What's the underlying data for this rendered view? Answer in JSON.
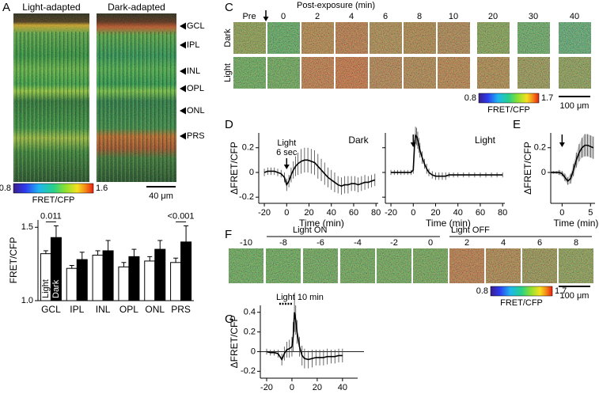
{
  "figure": {
    "a": {
      "label": "A",
      "titles": [
        "Light-adapted",
        "Dark-adapted"
      ],
      "layers": [
        "GCL",
        "IPL",
        "INL",
        "OPL",
        "ONL",
        "PRS"
      ],
      "colorbar": {
        "min": 0.8,
        "max": 1.6,
        "label": "FRET/CFP"
      },
      "scale_bar": "40 μm"
    },
    "c": {
      "label": "C",
      "header": "Post-exposure (min)",
      "columns": [
        "Pre",
        0,
        2,
        4,
        6,
        8,
        10,
        20,
        30,
        40
      ],
      "rows": [
        "Dark",
        "Light"
      ],
      "colorbar": {
        "min": 0.8,
        "max": 1.7,
        "label": "FRET/CFP"
      },
      "scale_bar": "100 μm"
    },
    "d": {
      "label": "D"
    },
    "e": {
      "label": "E"
    },
    "f": {
      "label": "F",
      "light_on": "Light ON",
      "light_off": "Light OFF",
      "columns": [
        -10,
        -8,
        -6,
        -4,
        -2,
        0,
        2,
        4,
        6,
        8
      ],
      "colorbar": {
        "min": 0.8,
        "max": 1.7,
        "label": "FRET/CFP"
      },
      "scale_bar": "100 μm"
    },
    "g": {
      "label": "G"
    }
  },
  "chart_data": [
    {
      "type": "bar",
      "ylabel": "FRET/CFP",
      "categories": [
        "GCL",
        "IPL",
        "INL",
        "OPL",
        "ONL",
        "PRS"
      ],
      "series": [
        {
          "name": "Light",
          "color": "#ffffff",
          "values": [
            1.32,
            1.22,
            1.31,
            1.23,
            1.27,
            1.26
          ],
          "errors": [
            0.02,
            0.02,
            0.03,
            0.03,
            0.03,
            0.03
          ]
        },
        {
          "name": "Dark",
          "color": "#000000",
          "values": [
            1.43,
            1.28,
            1.34,
            1.3,
            1.35,
            1.4
          ],
          "errors": [
            0.08,
            0.05,
            0.07,
            0.05,
            0.06,
            0.11
          ]
        }
      ],
      "ylim": [
        1.0,
        1.55
      ],
      "yticks": [
        {
          "value": 1,
          "label": "1.0"
        },
        1.5
      ],
      "annotations": [
        {
          "text": "0.011",
          "category": 0
        },
        {
          "text": "<0.001",
          "category": 5
        }
      ]
    },
    {
      "type": "line",
      "title": "Dark",
      "annotation": [
        "Light",
        "6 sec"
      ],
      "event_x": 0,
      "xlabel": "Time (min)",
      "ylabel": "ΔFRET/CFP",
      "x": [
        -20,
        -17,
        -14,
        -11,
        -8,
        -5,
        -2,
        0,
        2,
        4,
        6,
        8,
        10,
        13,
        16,
        19,
        22,
        25,
        28,
        31,
        34,
        37,
        40,
        43,
        46,
        49,
        52,
        55,
        58,
        61,
        64,
        67,
        70,
        73,
        76,
        79
      ],
      "series": [
        {
          "color": "#000000",
          "values": [
            0,
            0.01,
            0.01,
            0.01,
            0.0,
            -0.01,
            -0.04,
            -0.1,
            -0.07,
            -0.02,
            0.02,
            0.05,
            0.07,
            0.09,
            0.1,
            0.1,
            0.09,
            0.08,
            0.05,
            0.02,
            -0.01,
            -0.04,
            -0.06,
            -0.08,
            -0.1,
            -0.11,
            -0.1,
            -0.1,
            -0.09,
            -0.09,
            -0.1,
            -0.09,
            -0.08,
            -0.08,
            -0.07,
            -0.06
          ],
          "errors": [
            0.03,
            0.03,
            0.03,
            0.03,
            0.03,
            0.03,
            0.04,
            0.05,
            0.05,
            0.06,
            0.07,
            0.08,
            0.09,
            0.1,
            0.1,
            0.1,
            0.1,
            0.1,
            0.1,
            0.09,
            0.09,
            0.08,
            0.08,
            0.08,
            0.07,
            0.07,
            0.07,
            0.07,
            0.06,
            0.06,
            0.06,
            0.06,
            0.06,
            0.05,
            0.05,
            0.05
          ]
        }
      ],
      "xlim": [
        -25,
        82
      ],
      "xticks": [
        -20,
        0,
        20,
        40,
        60,
        80
      ],
      "ylim": [
        -0.25,
        0.32
      ],
      "yticks": [
        -0.2,
        0,
        0.2
      ],
      "ytick_labels": true
    },
    {
      "type": "line",
      "title": "Light",
      "event_x": 0,
      "xlabel": "Time (min)",
      "x": [
        -20,
        -17,
        -14,
        -11,
        -8,
        -5,
        -2,
        0,
        1,
        2,
        3,
        4,
        5,
        6,
        8,
        10,
        12,
        14,
        17,
        20,
        23,
        26,
        29,
        32,
        36,
        40,
        45,
        50,
        55,
        60,
        65,
        70,
        75,
        80
      ],
      "series": [
        {
          "color": "#000000",
          "values": [
            0,
            0,
            0,
            0,
            0,
            0,
            0,
            0.02,
            0.2,
            0.3,
            0.29,
            0.26,
            0.22,
            0.18,
            0.12,
            0.07,
            0.03,
            0.0,
            -0.02,
            -0.03,
            -0.03,
            -0.03,
            -0.03,
            -0.02,
            -0.02,
            -0.02,
            -0.02,
            -0.02,
            -0.02,
            -0.02,
            -0.02,
            -0.02,
            -0.02,
            -0.02
          ],
          "errors": [
            0.02,
            0.02,
            0.02,
            0.02,
            0.02,
            0.02,
            0.02,
            0.03,
            0.06,
            0.07,
            0.07,
            0.07,
            0.06,
            0.06,
            0.05,
            0.04,
            0.04,
            0.03,
            0.03,
            0.03,
            0.03,
            0.03,
            0.03,
            0.02,
            0.02,
            0.02,
            0.02,
            0.02,
            0.02,
            0.02,
            0.02,
            0.02,
            0.02,
            0.02
          ]
        }
      ],
      "xlim": [
        -25,
        82
      ],
      "xticks": [
        -20,
        0,
        20,
        40,
        60,
        80
      ],
      "ylim": [
        -0.25,
        0.32
      ],
      "yticks": [
        -0.2,
        0,
        0.2
      ],
      "ytick_labels": false
    },
    {
      "type": "line",
      "event_x": 0,
      "xlabel": "Time (min)",
      "ylabel": "ΔFRET/CFP",
      "band": true,
      "x": [
        -2,
        -1.5,
        -1,
        -0.5,
        0,
        0.5,
        1,
        1.5,
        2,
        2.5,
        3,
        3.5,
        4,
        4.5,
        5,
        5.5
      ],
      "series": [
        {
          "color": "#000000",
          "values": [
            0,
            0,
            0,
            0,
            -0.01,
            -0.04,
            -0.07,
            -0.05,
            0.02,
            0.1,
            0.16,
            0.2,
            0.22,
            0.22,
            0.21,
            0.2
          ],
          "errors": [
            0.01,
            0.01,
            0.01,
            0.02,
            0.02,
            0.03,
            0.03,
            0.04,
            0.05,
            0.06,
            0.07,
            0.08,
            0.09,
            0.09,
            0.09,
            0.09
          ]
        }
      ],
      "xlim": [
        -2,
        5.8
      ],
      "xticks": [
        0,
        5
      ],
      "ylim": [
        -0.25,
        0.32
      ],
      "yticks": [
        0,
        0.2
      ],
      "ytick_labels": true
    },
    {
      "type": "line",
      "annotation": [
        "Light 10 min"
      ],
      "event_range": [
        -10,
        0
      ],
      "reference_line": 0,
      "xlabel": "Time (min)",
      "ylabel": "ΔFRET/CFP",
      "x": [
        -20,
        -17,
        -14,
        -11,
        -8,
        -6,
        -4,
        -2,
        0,
        1,
        2,
        3,
        4,
        6,
        8,
        10,
        13,
        16,
        19,
        22,
        25,
        28,
        31,
        34,
        37,
        40
      ],
      "series": [
        {
          "color": "#000000",
          "values": [
            0,
            -0.01,
            -0.01,
            -0.02,
            -0.08,
            -0.02,
            0.02,
            0.03,
            0.05,
            0.15,
            0.4,
            0.32,
            0.2,
            0.05,
            -0.04,
            -0.07,
            -0.08,
            -0.07,
            -0.06,
            -0.06,
            -0.06,
            -0.05,
            -0.05,
            -0.05,
            -0.04,
            -0.04
          ],
          "errors": [
            0.03,
            0.03,
            0.03,
            0.04,
            0.06,
            0.07,
            0.08,
            0.09,
            0.1,
            0.15,
            0.2,
            0.15,
            0.12,
            0.1,
            0.1,
            0.1,
            0.09,
            0.09,
            0.08,
            0.08,
            0.08,
            0.08,
            0.07,
            0.07,
            0.07,
            0.07
          ]
        }
      ],
      "xlim": [
        -25,
        52
      ],
      "xticks": [
        -20,
        0,
        20,
        40
      ],
      "ylim": [
        -0.27,
        0.47
      ],
      "yticks": [
        -0.2,
        0,
        0.2,
        0.4
      ],
      "ytick_labels": true
    }
  ]
}
